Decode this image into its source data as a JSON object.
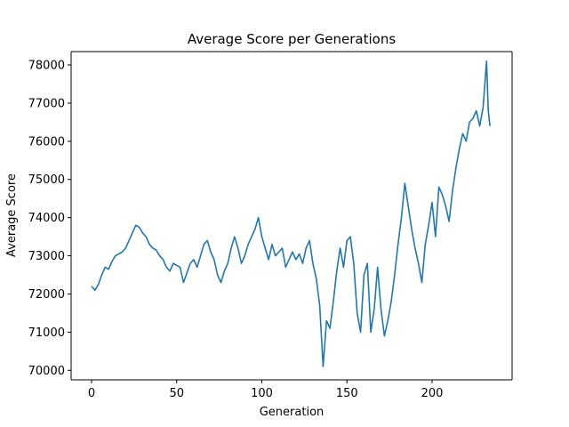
{
  "chart_data": {
    "type": "line",
    "title": "Average Score per Generations",
    "xlabel": "Generation",
    "ylabel": "Average Score",
    "xlim": [
      -12,
      247
    ],
    "ylim": [
      69750,
      78350
    ],
    "xticks": [
      0,
      50,
      100,
      150,
      200
    ],
    "yticks": [
      70000,
      71000,
      72000,
      73000,
      74000,
      75000,
      76000,
      77000,
      78000
    ],
    "grid": false,
    "line_color": "#1f77b4",
    "series": [
      {
        "x": [
          0,
          2,
          4,
          6,
          8,
          10,
          12,
          14,
          16,
          18,
          20,
          22,
          24,
          26,
          28,
          30,
          32,
          34,
          36,
          38,
          40,
          42,
          44,
          46,
          48,
          50,
          52,
          54,
          56,
          58,
          60,
          62,
          64,
          66,
          68,
          70,
          72,
          74,
          76,
          78,
          80,
          82,
          84,
          86,
          88,
          90,
          92,
          94,
          96,
          98,
          100,
          102,
          104,
          106,
          108,
          110,
          112,
          114,
          116,
          118,
          120,
          122,
          124,
          126,
          128,
          130,
          132,
          134,
          135,
          136,
          138,
          140,
          142,
          144,
          146,
          148,
          150,
          152,
          154,
          156,
          158,
          160,
          162,
          164,
          166,
          168,
          170,
          172,
          174,
          176,
          178,
          180,
          182,
          184,
          186,
          188,
          190,
          192,
          194,
          196,
          198,
          200,
          202,
          204,
          206,
          208,
          210,
          212,
          214,
          216,
          218,
          220,
          222,
          224,
          226,
          228,
          230,
          232,
          233,
          234
        ],
        "y": [
          72200,
          72100,
          72250,
          72500,
          72700,
          72650,
          72850,
          73000,
          73050,
          73100,
          73200,
          73400,
          73600,
          73800,
          73750,
          73600,
          73500,
          73300,
          73200,
          73150,
          73000,
          72900,
          72700,
          72600,
          72800,
          72750,
          72700,
          72300,
          72550,
          72800,
          72900,
          72700,
          73000,
          73300,
          73400,
          73100,
          72900,
          72500,
          72300,
          72600,
          72800,
          73200,
          73500,
          73200,
          72800,
          73000,
          73300,
          73500,
          73700,
          74000,
          73500,
          73200,
          72900,
          73300,
          73000,
          73100,
          73200,
          72700,
          72900,
          73100,
          72900,
          73050,
          72800,
          73200,
          73400,
          72800,
          72400,
          71700,
          70900,
          70100,
          71300,
          71100,
          71800,
          72600,
          73200,
          72700,
          73400,
          73500,
          72800,
          71500,
          71000,
          72500,
          72800,
          71000,
          71600,
          72700,
          71600,
          70900,
          71300,
          71800,
          72500,
          73300,
          74000,
          74900,
          74300,
          73700,
          73200,
          72800,
          72300,
          73300,
          73800,
          74400,
          73500,
          74800,
          74600,
          74300,
          73900,
          74700,
          75300,
          75800,
          76200,
          76000,
          76500,
          76600,
          76800,
          76400,
          76900,
          78100,
          76800,
          76400
        ]
      }
    ]
  }
}
